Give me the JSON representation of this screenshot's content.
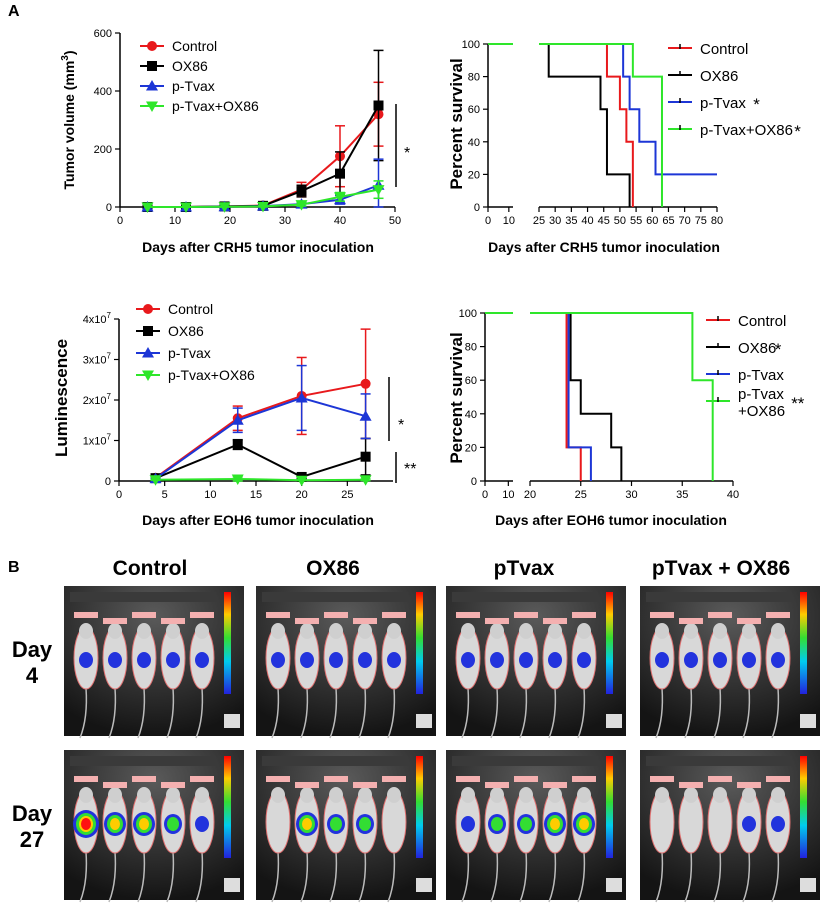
{
  "figure": {
    "panel_a_letter": "A",
    "panel_b_letter": "B"
  },
  "colors": {
    "control": "#e8191c",
    "ox86": "#000000",
    "ptvax": "#1d36d6",
    "combo": "#2ee62a"
  },
  "chart_data": [
    {
      "id": "crh5_volume",
      "type": "line",
      "title": "",
      "xlabel": "Days after CRH5 tumor inoculation",
      "ylabel": "Tumor volume (mm³)",
      "ylabel_main": "Tumor volume (mm",
      "ylabel_sup": "3",
      "ylabel_end": ")",
      "xlim": [
        0,
        50
      ],
      "ylim": [
        0,
        600
      ],
      "xticks": [
        "0",
        "10",
        "20",
        "30",
        "40",
        "50"
      ],
      "yticks": [
        "0",
        "200",
        "400",
        "600"
      ],
      "xtick_values": [
        0,
        10,
        20,
        30,
        40,
        50
      ],
      "ytick_values": [
        0,
        200,
        400,
        600
      ],
      "x": [
        5,
        12,
        19,
        26,
        33,
        40,
        47
      ],
      "series": [
        {
          "name": "Control",
          "key": "control",
          "marker": "circle",
          "values": [
            0,
            0,
            2,
            5,
            60,
            175,
            320
          ],
          "errors": [
            0,
            0,
            2,
            5,
            25,
            105,
            110
          ]
        },
        {
          "name": "OX86",
          "key": "ox86",
          "marker": "square",
          "values": [
            0,
            0,
            2,
            4,
            55,
            115,
            350
          ],
          "errors": [
            0,
            0,
            2,
            4,
            20,
            75,
            190
          ]
        },
        {
          "name": "p-Tvax",
          "key": "ptvax",
          "marker": "triangle-up",
          "values": [
            0,
            0,
            1,
            3,
            10,
            25,
            75
          ],
          "errors": [
            0,
            0,
            1,
            3,
            8,
            15,
            90
          ]
        },
        {
          "name": "p-Tvax+OX86",
          "key": "combo",
          "marker": "triangle-down",
          "values": [
            0,
            0,
            1,
            2,
            8,
            35,
            60
          ],
          "errors": [
            0,
            0,
            1,
            2,
            5,
            15,
            30
          ]
        }
      ],
      "significance": "*"
    },
    {
      "id": "crh5_survival",
      "type": "line",
      "subtype": "kaplan-meier",
      "xlabel": "Days after CRH5 tumor inoculation",
      "ylabel": "Percent survival",
      "ylim": [
        0,
        100
      ],
      "yticks": [
        "0",
        "20",
        "40",
        "60",
        "80",
        "100"
      ],
      "ytick_values": [
        0,
        20,
        40,
        60,
        80,
        100
      ],
      "x_segments": [
        [
          0,
          12
        ],
        [
          25,
          80
        ]
      ],
      "xticks": [
        "0",
        "10",
        "25",
        "30",
        "35",
        "40",
        "45",
        "50",
        "55",
        "60",
        "65",
        "70",
        "75",
        "80"
      ],
      "xtick_values": [
        0,
        10,
        25,
        30,
        35,
        40,
        45,
        50,
        55,
        60,
        65,
        70,
        75,
        80
      ],
      "series": [
        {
          "name": "Control",
          "key": "control",
          "suffix": "",
          "steps": [
            [
              0,
              100
            ],
            [
              46,
              80
            ],
            [
              50,
              60
            ],
            [
              52,
              40
            ],
            [
              54,
              0
            ]
          ]
        },
        {
          "name": "OX86",
          "key": "ox86",
          "suffix": "",
          "steps": [
            [
              0,
              100
            ],
            [
              28,
              80
            ],
            [
              44,
              60
            ],
            [
              46,
              20
            ],
            [
              53,
              0
            ]
          ]
        },
        {
          "name": "p-Tvax",
          "key": "ptvax",
          "suffix": "*",
          "steps": [
            [
              0,
              100
            ],
            [
              51,
              80
            ],
            [
              53,
              60
            ],
            [
              56,
              40
            ],
            [
              61,
              20
            ],
            [
              80,
              20
            ]
          ]
        },
        {
          "name": "p-Tvax+OX86",
          "key": "combo",
          "suffix": "*",
          "steps": [
            [
              0,
              100
            ],
            [
              54,
              80
            ],
            [
              63,
              0
            ]
          ]
        }
      ]
    },
    {
      "id": "eoh6_luminescence",
      "type": "line",
      "xlabel": "Days after EOH6 tumor inoculation",
      "ylabel": "Luminescence",
      "xlim": [
        0,
        30
      ],
      "ylim": [
        0,
        40000000
      ],
      "xticks": [
        "0",
        "5",
        "10",
        "15",
        "20",
        "25"
      ],
      "xtick_values": [
        0,
        5,
        10,
        15,
        20,
        25
      ],
      "yticks": [
        "0",
        "1x10",
        "2x10",
        "3x10",
        "4x10"
      ],
      "ytick_exponent": "7",
      "ytick_values": [
        0,
        10000000,
        20000000,
        30000000,
        40000000
      ],
      "x": [
        4,
        13,
        20,
        27
      ],
      "series": [
        {
          "name": "Control",
          "key": "control",
          "marker": "circle",
          "values": [
            800000,
            15500000,
            21000000,
            24000000
          ],
          "errors": [
            300000,
            3000000,
            9500000,
            13500000
          ]
        },
        {
          "name": "OX86",
          "key": "ox86",
          "marker": "square",
          "values": [
            700000,
            9000000,
            1000000,
            6000000
          ],
          "errors": [
            200000,
            1200000,
            500000,
            4500000
          ]
        },
        {
          "name": "p-Tvax",
          "key": "ptvax",
          "marker": "triangle-up",
          "values": [
            600000,
            15000000,
            20500000,
            16000000
          ],
          "errors": [
            200000,
            3000000,
            8000000,
            5500000
          ]
        },
        {
          "name": "p-Tvax+OX86",
          "key": "combo",
          "marker": "triangle-down",
          "values": [
            300000,
            500000,
            200000,
            300000
          ],
          "errors": [
            100000,
            500000,
            100000,
            200000
          ]
        }
      ],
      "significance": [
        "*",
        "**"
      ]
    },
    {
      "id": "eoh6_survival",
      "type": "line",
      "subtype": "kaplan-meier",
      "xlabel": "Days after EOH6 tumor inoculation",
      "ylabel": "Percent survival",
      "ylim": [
        0,
        100
      ],
      "yticks": [
        "0",
        "20",
        "40",
        "60",
        "80",
        "100"
      ],
      "ytick_values": [
        0,
        20,
        40,
        60,
        80,
        100
      ],
      "x_segments": [
        [
          0,
          12
        ],
        [
          20,
          40
        ]
      ],
      "xticks": [
        "0",
        "10",
        "20",
        "25",
        "30",
        "35",
        "40"
      ],
      "xtick_values": [
        0,
        10,
        20,
        25,
        30,
        35,
        40
      ],
      "series": [
        {
          "name": "Control",
          "key": "control",
          "suffix": "",
          "steps": [
            [
              0,
              100
            ],
            [
              23.6,
              20
            ],
            [
              25,
              0
            ]
          ]
        },
        {
          "name": "OX86",
          "key": "ox86",
          "suffix": "*",
          "steps": [
            [
              0,
              100
            ],
            [
              24,
              60
            ],
            [
              25,
              40
            ],
            [
              28,
              20
            ],
            [
              29,
              0
            ]
          ]
        },
        {
          "name": "p-Tvax",
          "key": "ptvax",
          "suffix": "",
          "steps": [
            [
              0,
              100
            ],
            [
              23.8,
              20
            ],
            [
              26,
              0
            ]
          ]
        },
        {
          "name": "p-Tvax\n+OX86",
          "key": "combo",
          "suffix": "**",
          "steps": [
            [
              0,
              100
            ],
            [
              36,
              60
            ],
            [
              38,
              0
            ]
          ]
        }
      ]
    }
  ],
  "imaging": {
    "columns": [
      "Control",
      "OX86",
      "pTvax",
      "pTvax + OX86"
    ],
    "rows": [
      {
        "label_top": "Day",
        "label_bottom": "4"
      },
      {
        "label_top": "Day",
        "label_bottom": "27"
      }
    ]
  }
}
